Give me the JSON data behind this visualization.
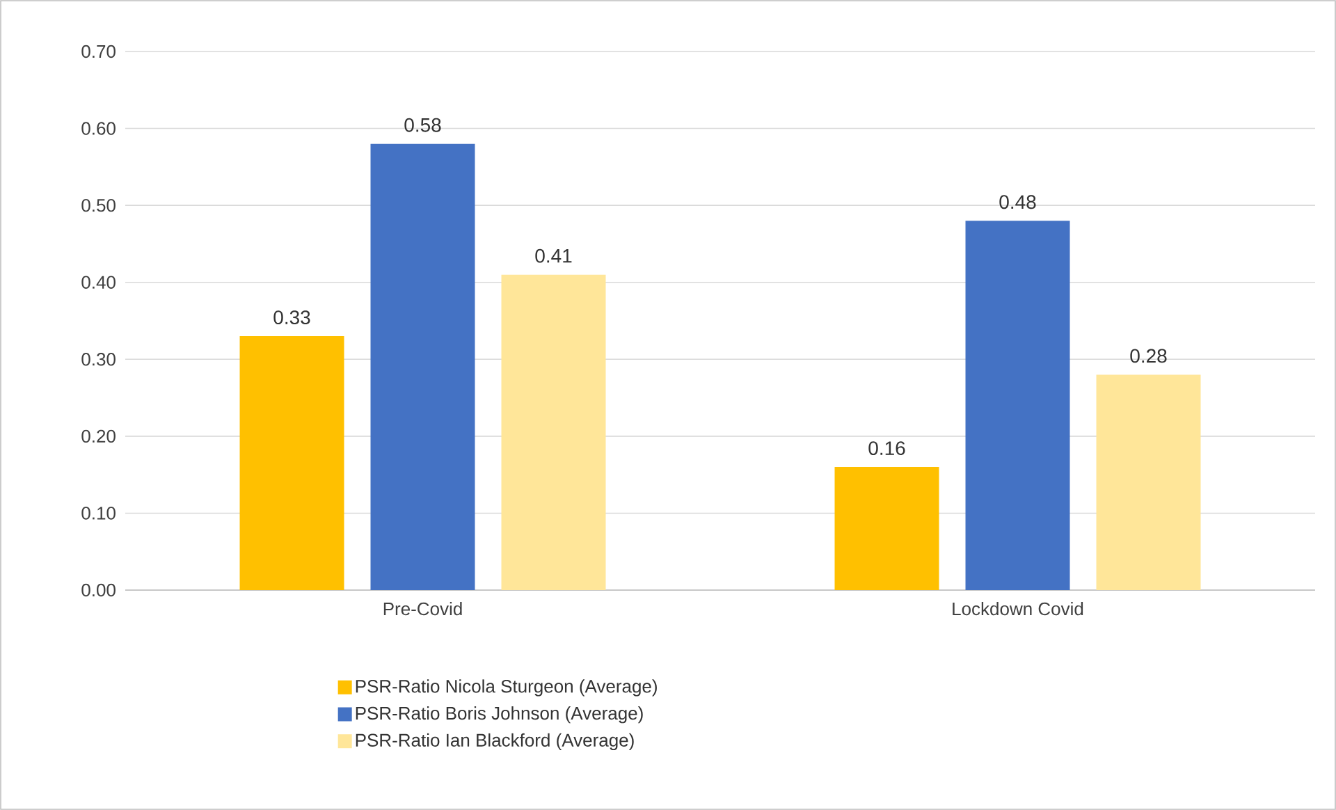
{
  "chart_data": {
    "type": "bar",
    "categories": [
      "Pre-Covid",
      "Lockdown Covid"
    ],
    "series": [
      {
        "name": "PSR-Ratio Nicola Sturgeon (Average)",
        "color": "#ffc000",
        "values": [
          0.33,
          0.16
        ]
      },
      {
        "name": "PSR-Ratio Boris Johnson (Average)",
        "color": "#4472c4",
        "values": [
          0.58,
          0.48
        ]
      },
      {
        "name": "PSR-Ratio Ian Blackford (Average)",
        "color": "#ffe699",
        "values": [
          0.41,
          0.28
        ]
      }
    ],
    "ylim": [
      0,
      0.7
    ],
    "yticks": [
      {
        "value": 0,
        "label": "0.00"
      },
      {
        "value": 0.1,
        "label": "0.10"
      },
      {
        "value": 0.2,
        "label": "0.20"
      },
      {
        "value": 0.3,
        "label": "0.30"
      },
      {
        "value": 0.4,
        "label": "0.40"
      },
      {
        "value": 0.5,
        "label": "0.50"
      },
      {
        "value": 0.6,
        "label": "0.60"
      },
      {
        "value": 0.7,
        "label": "0.70"
      }
    ],
    "grid": "y",
    "legend": "bottom",
    "data_labels": true
  }
}
